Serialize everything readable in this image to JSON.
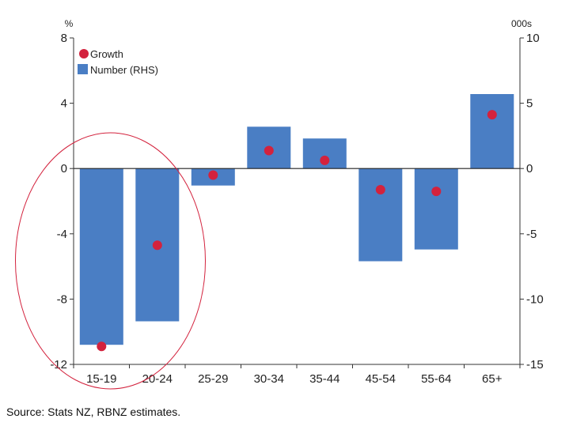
{
  "chart_data": {
    "type": "bar",
    "categories": [
      "15-19",
      "20-24",
      "25-29",
      "30-34",
      "35-44",
      "45-54",
      "55-64",
      "65+"
    ],
    "series": [
      {
        "name": "Number (RHS)",
        "axis": "right",
        "mark": "bar",
        "color": "#4a7ec4",
        "values": [
          -13.5,
          -11.7,
          -1.3,
          3.2,
          2.3,
          -7.1,
          -6.2,
          5.7
        ]
      },
      {
        "name": "Growth",
        "axis": "left",
        "mark": "dot",
        "color": "#d3223d",
        "values": [
          -10.9,
          -4.7,
          -0.4,
          1.1,
          0.5,
          -1.3,
          -1.4,
          3.3
        ]
      }
    ],
    "left_axis": {
      "unit": "%",
      "range": [
        -12,
        8
      ],
      "ticks": [
        "8",
        "4",
        "0",
        "-4",
        "-8",
        "-12"
      ]
    },
    "right_axis": {
      "unit": "000s",
      "range": [
        -15,
        10
      ],
      "ticks": [
        "10",
        "5",
        "0",
        "-5",
        "-10",
        "-15"
      ]
    },
    "legend": {
      "placement": "top-left",
      "entries": [
        "Growth",
        "Number (RHS)"
      ]
    },
    "annotation": {
      "shape": "ellipse",
      "color": "#d3223d",
      "around": [
        "15-19",
        "20-24"
      ]
    },
    "grid": false
  },
  "source": "Source: Stats NZ, RBNZ estimates."
}
